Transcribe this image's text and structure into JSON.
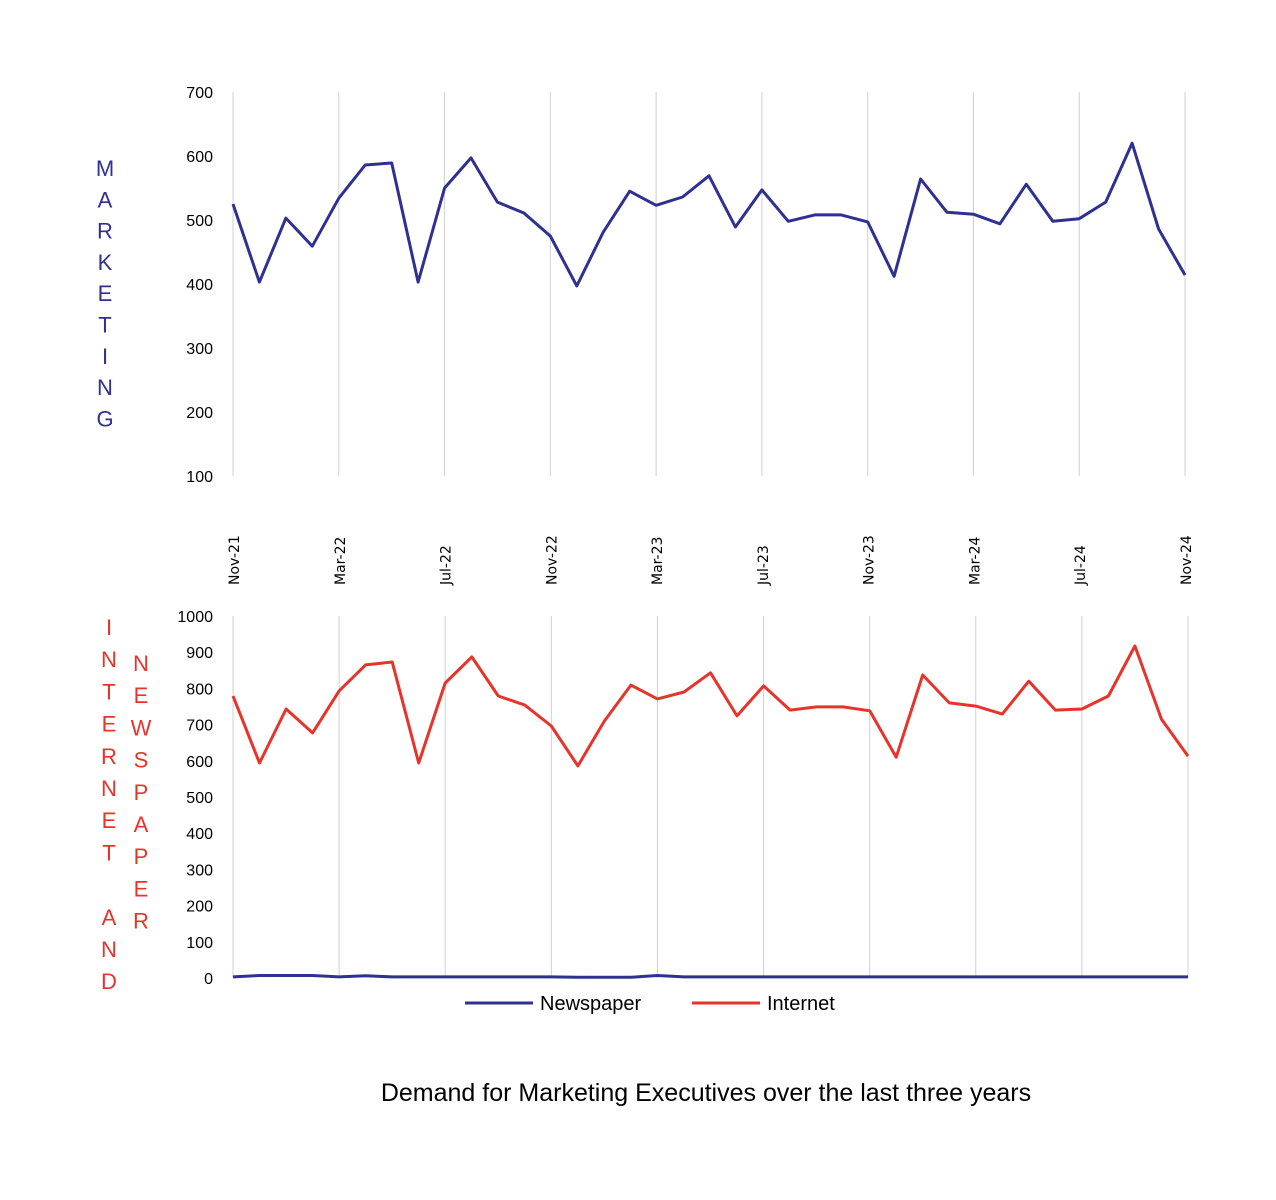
{
  "chart_data": [
    {
      "id": "marketing",
      "type": "line",
      "ylabel": "MARKETING",
      "ylim": [
        100,
        700
      ],
      "yticks": [
        100,
        200,
        300,
        400,
        500,
        600,
        700
      ],
      "grid": "vertical",
      "x": [
        "Nov-21",
        "Dec-21",
        "Jan-22",
        "Feb-22",
        "Mar-22",
        "Apr-22",
        "May-22",
        "Jun-22",
        "Jul-22",
        "Aug-22",
        "Sep-22",
        "Oct-22",
        "Nov-22",
        "Dec-22",
        "Jan-23",
        "Feb-23",
        "Mar-23",
        "Apr-23",
        "May-23",
        "Jun-23",
        "Jul-23",
        "Aug-23",
        "Sep-23",
        "Oct-23",
        "Nov-23",
        "Dec-23",
        "Jan-24",
        "Feb-24",
        "Mar-24",
        "Apr-24",
        "May-24",
        "Jun-24",
        "Jul-24",
        "Aug-24",
        "Sep-24",
        "Oct-24",
        "Nov-24"
      ],
      "xtick_labels": [
        "Nov-21",
        "Mar-22",
        "Jul-22",
        "Nov-22",
        "Mar-23",
        "Jul-23",
        "Nov-23",
        "Mar-24",
        "Jul-24",
        "Nov-24"
      ],
      "series": [
        {
          "name": "Marketing",
          "color": "#2e3192",
          "values": [
            525,
            403,
            503,
            459,
            534,
            586,
            589,
            403,
            550,
            597,
            528,
            511,
            475,
            397,
            481,
            545,
            523,
            536,
            569,
            489,
            547,
            498,
            508,
            508,
            497,
            412,
            564,
            512,
            509,
            494,
            556,
            498,
            502,
            528,
            620,
            486,
            414
          ]
        }
      ]
    },
    {
      "id": "internet-newspaper",
      "type": "line",
      "ylabel_left": "INTERNET AND",
      "ylabel_right": "NEWSPAPER",
      "ylim": [
        0,
        1000
      ],
      "yticks": [
        0,
        100,
        200,
        300,
        400,
        500,
        600,
        700,
        800,
        900,
        1000
      ],
      "grid": "vertical",
      "legend": "bottom",
      "series": [
        {
          "name": "Newspaper",
          "color": "#2e3192",
          "values": [
            3,
            7,
            7,
            7,
            3,
            6,
            3,
            3,
            3,
            3,
            3,
            3,
            3,
            2,
            2,
            2,
            7,
            3,
            3,
            3,
            3,
            3,
            3,
            3,
            3,
            3,
            3,
            3,
            3,
            3,
            3,
            3,
            3,
            3,
            3,
            3,
            3
          ]
        },
        {
          "name": "Internet",
          "color": "#e8332a",
          "values": [
            779,
            594,
            743,
            677,
            793,
            865,
            873,
            594,
            815,
            887,
            779,
            754,
            696,
            586,
            710,
            809,
            771,
            790,
            843,
            724,
            807,
            740,
            749,
            749,
            738,
            610,
            837,
            760,
            751,
            729,
            820,
            740,
            743,
            779,
            917,
            715,
            613
          ]
        }
      ]
    }
  ],
  "legend": {
    "newspaper": "Newspaper",
    "internet": "Internet"
  },
  "caption": "Demand for Marketing Executives over the last three years"
}
